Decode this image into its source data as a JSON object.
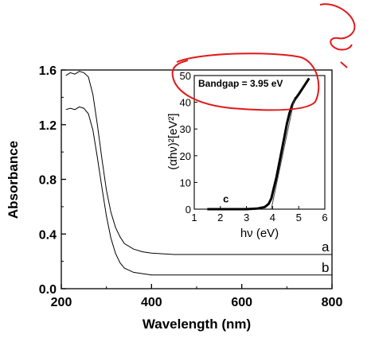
{
  "chart_data": [
    {
      "type": "line",
      "xlabel": "Wavelength (nm)",
      "ylabel": "Absorbance",
      "xlim": [
        200,
        800
      ],
      "ylim": [
        0,
        1.6
      ],
      "xticks": [
        200,
        400,
        600,
        800
      ],
      "xtick_labels": [
        "200",
        "400",
        "600",
        "800"
      ],
      "yticks": [
        0.0,
        0.4,
        0.8,
        1.2,
        1.6
      ],
      "ytick_labels": [
        "0.0",
        "0.4",
        "0.8",
        "1.2",
        "1.6"
      ],
      "grid": false,
      "series": [
        {
          "name": "a",
          "x": [
            210,
            220,
            230,
            240,
            250,
            260,
            270,
            280,
            290,
            300,
            310,
            320,
            330,
            340,
            360,
            380,
            400,
            450,
            500,
            600,
            700,
            800
          ],
          "y": [
            1.56,
            1.58,
            1.57,
            1.59,
            1.58,
            1.55,
            1.42,
            1.2,
            0.95,
            0.72,
            0.56,
            0.45,
            0.38,
            0.33,
            0.29,
            0.27,
            0.26,
            0.25,
            0.25,
            0.25,
            0.25,
            0.25
          ]
        },
        {
          "name": "b",
          "x": [
            210,
            220,
            230,
            240,
            250,
            260,
            270,
            280,
            290,
            300,
            310,
            320,
            330,
            340,
            360,
            380,
            400,
            450,
            500,
            600,
            700,
            800
          ],
          "y": [
            1.31,
            1.32,
            1.31,
            1.33,
            1.32,
            1.28,
            1.16,
            0.96,
            0.74,
            0.53,
            0.37,
            0.26,
            0.19,
            0.15,
            0.12,
            0.11,
            0.1,
            0.1,
            0.1,
            0.1,
            0.1,
            0.1
          ]
        }
      ]
    },
    {
      "type": "line",
      "xlabel": "hν (eV)",
      "ylabel": "(αhν)²[eV²]",
      "xlim": [
        1,
        6
      ],
      "ylim": [
        0,
        50
      ],
      "xticks": [
        1,
        2,
        3,
        4,
        5,
        6
      ],
      "xtick_labels": [
        "1",
        "2",
        "3",
        "4",
        "5",
        "6"
      ],
      "yticks": [
        0,
        10,
        20,
        30,
        40,
        50
      ],
      "ytick_labels": [
        "0",
        "10",
        "20",
        "30",
        "40",
        "50"
      ],
      "annotation": "Bandgap = 3.95 eV",
      "series": [
        {
          "name": "c",
          "x": [
            1.5,
            2.0,
            2.5,
            3.0,
            3.4,
            3.7,
            3.85,
            3.95,
            4.05,
            4.15,
            4.25,
            4.35,
            4.45,
            4.55,
            4.65,
            4.75,
            4.85,
            5.0,
            5.2,
            5.4
          ],
          "y": [
            0,
            0,
            0,
            0,
            0.2,
            0.8,
            2,
            4,
            8,
            12,
            17,
            22,
            27,
            32,
            36,
            39,
            41,
            43,
            46,
            49
          ]
        }
      ],
      "fit_line": {
        "x": [
          3.95,
          4.85
        ],
        "y": [
          0,
          42
        ]
      }
    }
  ]
}
